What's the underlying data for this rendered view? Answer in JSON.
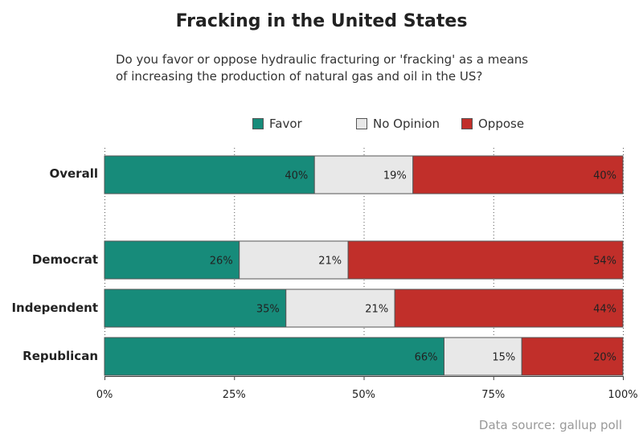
{
  "chart_data": {
    "type": "bar",
    "orientation": "horizontal",
    "stacked": true,
    "title": "Fracking in the United States",
    "subtitle_lines": [
      "Do you favor or oppose hydraulic fracturing or 'fracking' as a means",
      "of increasing the production of natural gas and oil in the US?"
    ],
    "categories": [
      "Overall",
      "Democrat",
      "Independent",
      "Republican"
    ],
    "series": [
      {
        "name": "Favor",
        "color": "#178b7a",
        "values": [
          40,
          26,
          35,
          66
        ],
        "labels": [
          "40%",
          "26%",
          "35%",
          "66%"
        ],
        "shares": [
          40.5,
          26,
          35,
          65.5
        ]
      },
      {
        "name": "No Opinion",
        "color": "#e8e8e8",
        "values": [
          19,
          21,
          21,
          15
        ],
        "labels": [
          "19%",
          "21%",
          "21%",
          "15%"
        ],
        "shares": [
          19,
          21,
          21,
          15
        ]
      },
      {
        "name": "Oppose",
        "color": "#c12f2a",
        "values": [
          40,
          54,
          44,
          20
        ],
        "labels": [
          "40%",
          "54%",
          "44%",
          "20%"
        ],
        "shares": [
          40.5,
          53,
          44,
          19.5
        ]
      }
    ],
    "x_ticks": [
      "0%",
      "25%",
      "50%",
      "75%",
      "100%"
    ],
    "xlim": [
      0,
      100
    ],
    "grid": "vertical dotted",
    "legend_position": "top",
    "source": "Data source: gallup poll"
  }
}
